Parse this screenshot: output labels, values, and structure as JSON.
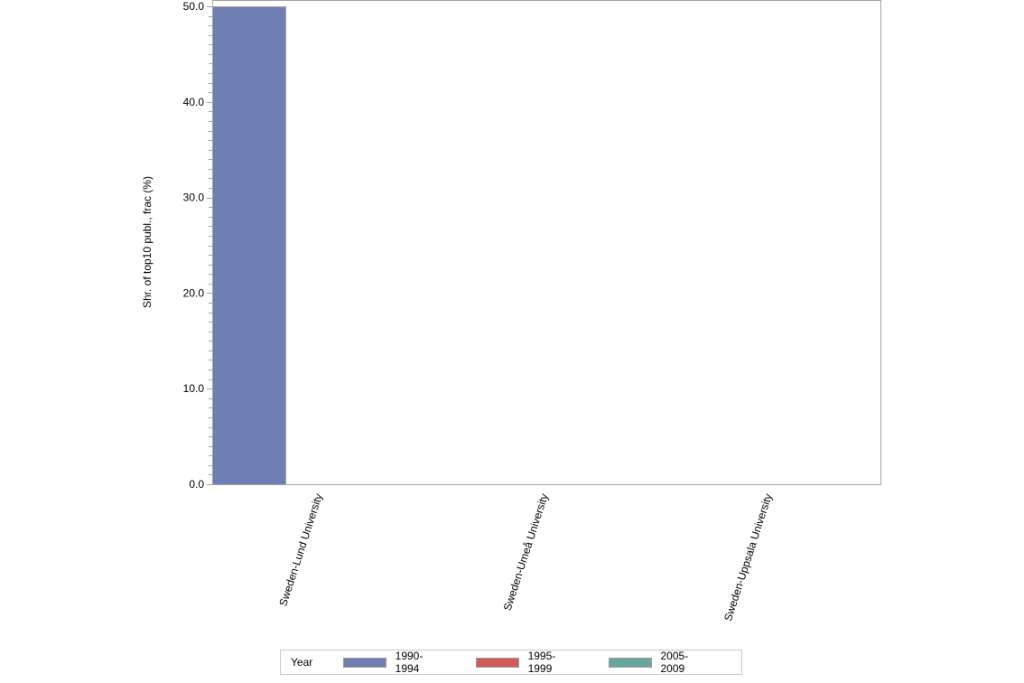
{
  "chart_data": {
    "type": "bar",
    "title": "",
    "xlabel": "",
    "ylabel": "Shr. of top10 publ., frac (%)",
    "ylim": [
      0,
      50
    ],
    "yticks": [
      "0.0",
      "10.0",
      "20.0",
      "30.0",
      "40.0",
      "50.0"
    ],
    "grid": false,
    "legend_position": "bottom",
    "categories": [
      "Sweden-Lund University",
      "Sweden-Umeå University",
      "Sweden-Uppsala University"
    ],
    "series": [
      {
        "name": "1990-1994",
        "color": "#6f7eb3",
        "values": [
          50.0,
          null,
          null
        ]
      },
      {
        "name": "1995-1999",
        "color": "#d05b5b",
        "values": [
          null,
          null,
          null
        ]
      },
      {
        "name": "2005-2009",
        "color": "#66a8a0",
        "values": [
          null,
          null,
          null
        ]
      }
    ]
  },
  "legend": {
    "title": "Year",
    "items": [
      {
        "label": "1990-1994",
        "color": "#6f7eb3"
      },
      {
        "label": "1995-1999",
        "color": "#d05b5b"
      },
      {
        "label": "2005-2009",
        "color": "#66a8a0"
      }
    ]
  }
}
